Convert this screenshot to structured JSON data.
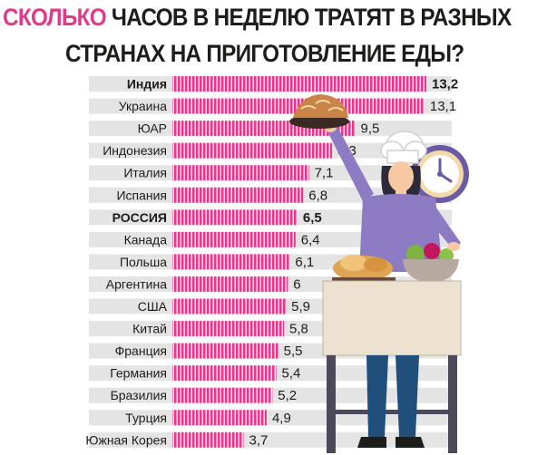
{
  "title": {
    "accent": "СКОЛЬКО",
    "line1_rest": " ЧАСОВ В НЕДЕЛЮ ТРАТЯТ В РАЗНЫХ",
    "line2": "СТРАНАХ НА ПРИГОТОВЛЕНИЕ ЕДЫ?"
  },
  "colors": {
    "bar": "#e23a8b",
    "bar_stripe": "#ffffff",
    "row_bg": "#e4e4e4",
    "text": "#1d1d1b",
    "accent": "#e23a8b"
  },
  "highlight_country": "РОССИЯ",
  "chart_data": {
    "type": "bar",
    "orientation": "horizontal",
    "title": "СКОЛЬКО ЧАСОВ В НЕДЕЛЮ ТРАТЯТ В РАЗНЫХ СТРАНАХ НА ПРИГОТОВЛЕНИЕ ЕДЫ?",
    "categories": [
      "Индия",
      "Украина",
      "ЮАР",
      "Индонезия",
      "Италия",
      "Испания",
      "РОССИЯ",
      "Канада",
      "Польша",
      "Аргентина",
      "США",
      "Китай",
      "Франция",
      "Германия",
      "Бразилия",
      "Турция",
      "Южная Корея"
    ],
    "values": [
      13.2,
      13.1,
      9.5,
      8.3,
      7.1,
      6.8,
      6.5,
      6.4,
      6.1,
      6,
      5.9,
      5.8,
      5.5,
      5.4,
      5.2,
      4.9,
      3.7
    ],
    "value_labels": [
      "13,2",
      "13,1",
      "9,5",
      "8,3",
      "7,1",
      "6,8",
      "6,5",
      "6,4",
      "6,1",
      "6",
      "5,9",
      "5,8",
      "5,5",
      "5,4",
      "5,2",
      "4,9",
      "3,7"
    ],
    "bold_rows": [
      0,
      6
    ],
    "xlabel": "",
    "ylabel": "",
    "xlim": [
      0,
      13.2
    ],
    "grid": false,
    "legend": "none"
  },
  "illustration": {
    "description_icon": "woman-cook-with-clock-icon"
  }
}
